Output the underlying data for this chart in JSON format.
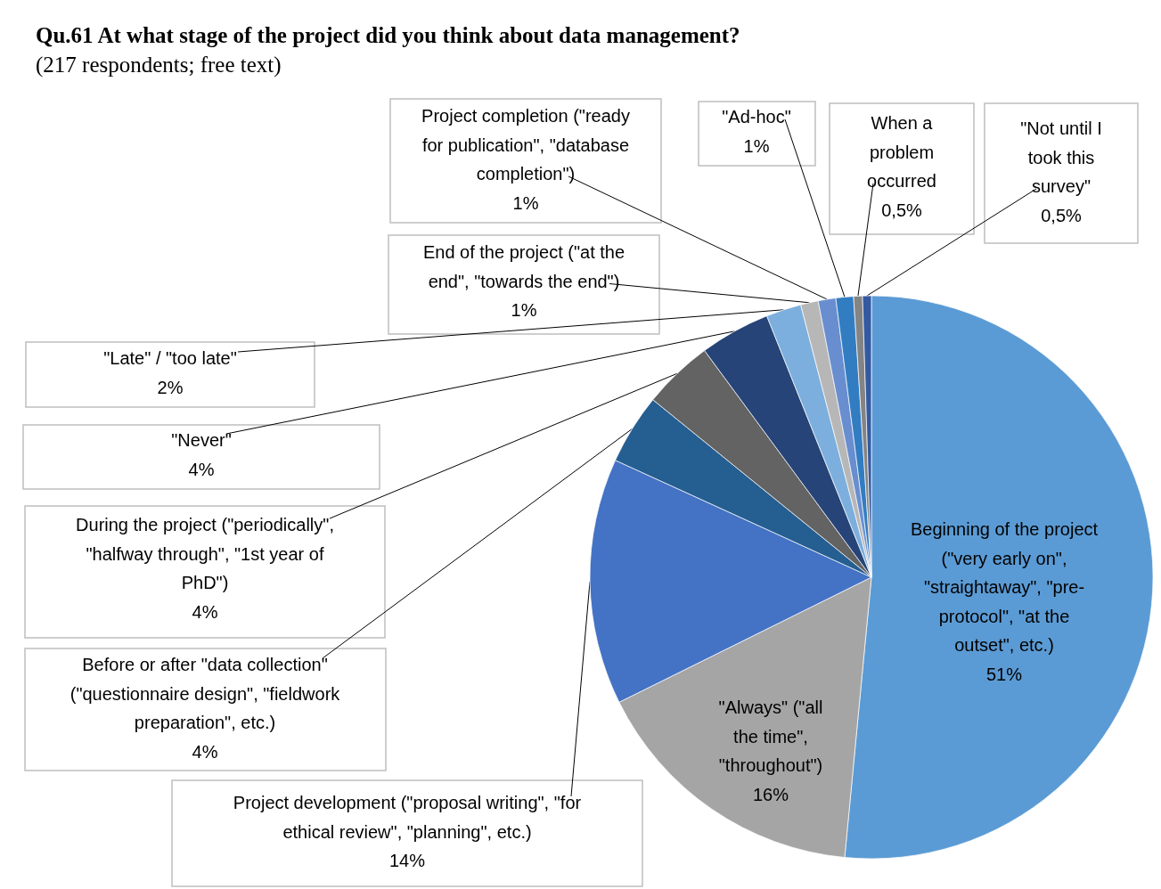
{
  "chart_data": {
    "type": "pie",
    "title": "Qu.61 At what stage of the project did you think about data management?",
    "subtitle": "(217 respondents; free text)",
    "categories": [
      "Beginning of the project (\"very early on\", \"straightaway\", \"pre-protocol\", \"at the outset\", etc.)",
      "\"Always\" (\"all the time\", \"throughout\")",
      "Project development  (\"proposal writing\", \"for ethical review\", \"planning\", etc.)",
      "Before or after \"data collection\" (\"questionnaire design\", \"fieldwork preparation\", etc.)",
      "During the project (\"periodically\", \"halfway through\", \"1st year of PhD\")",
      "\"Never\"",
      "\"Late\" / \"too late\"",
      "End of the project (\"at the end\", \"towards the end\")",
      "Project completion (\"ready for publication\", \"database completion\")",
      "\"Ad-hoc\"",
      "When a problem occurred",
      "\"Not until I took this survey\""
    ],
    "values": [
      51,
      16,
      14,
      4,
      4,
      4,
      2,
      1,
      1,
      1,
      0.5,
      0.5
    ],
    "value_labels": [
      "51%",
      "16%",
      "14%",
      "4%",
      "4%",
      "4%",
      "2%",
      "1%",
      "1%",
      "1%",
      "0,5%",
      "0,5%"
    ],
    "colors": [
      "#5b9bd5",
      "#a5a5a5",
      "#4472c4",
      "#255e91",
      "#636363",
      "#264478",
      "#7cafdd",
      "#b7b7b7",
      "#698ed0",
      "#327dc2",
      "#848484",
      "#335aa1"
    ]
  }
}
